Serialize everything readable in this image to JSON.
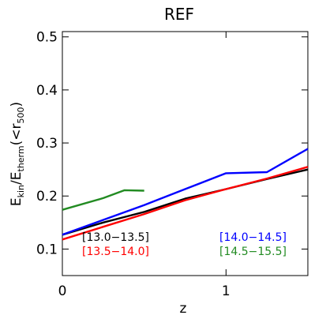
{
  "chart_data": {
    "type": "line",
    "title": "REF",
    "xlabel": "z",
    "ylabel": "E_kin/E_therm(<r_500)",
    "ylabel_parts": {
      "e1": "E",
      "s1": "kin",
      "slash": "/E",
      "s2": "therm",
      "paren_open": "(<r",
      "s3": "500",
      "paren_close": ")"
    },
    "xlim": [
      0,
      1.5
    ],
    "ylim": [
      0.05,
      0.51
    ],
    "xticks": [
      0,
      1
    ],
    "xtick_labels": [
      "0",
      "1"
    ],
    "yticks": [
      0.1,
      0.2,
      0.3,
      0.4,
      0.5
    ],
    "ytick_labels": [
      "0.1",
      "0.2",
      "0.3",
      "0.4",
      "0.5"
    ],
    "grid": false,
    "legend_placement": "bottom",
    "series": [
      {
        "name": "[13.0−13.5]",
        "color": "#000000",
        "x": [
          0,
          0.25,
          0.5,
          0.75,
          1.0,
          1.25,
          1.5
        ],
        "y": [
          0.127,
          0.15,
          0.17,
          0.195,
          0.213,
          0.232,
          0.25
        ]
      },
      {
        "name": "[13.5−14.0]",
        "color": "#ff0000",
        "x": [
          0,
          0.25,
          0.5,
          0.75,
          1.0,
          1.25,
          1.5
        ],
        "y": [
          0.118,
          0.142,
          0.166,
          0.192,
          0.213,
          0.233,
          0.255
        ]
      },
      {
        "name": "[14.0−14.5]",
        "color": "#0000ff",
        "x": [
          0,
          0.25,
          0.5,
          0.75,
          1.0,
          1.25,
          1.5
        ],
        "y": [
          0.127,
          0.155,
          0.183,
          0.213,
          0.243,
          0.245,
          0.289
        ]
      },
      {
        "name": "[14.5−15.5]",
        "color": "#228b22",
        "x": [
          0,
          0.25,
          0.38,
          0.5
        ],
        "y": [
          0.174,
          0.196,
          0.211,
          0.21
        ]
      }
    ]
  }
}
